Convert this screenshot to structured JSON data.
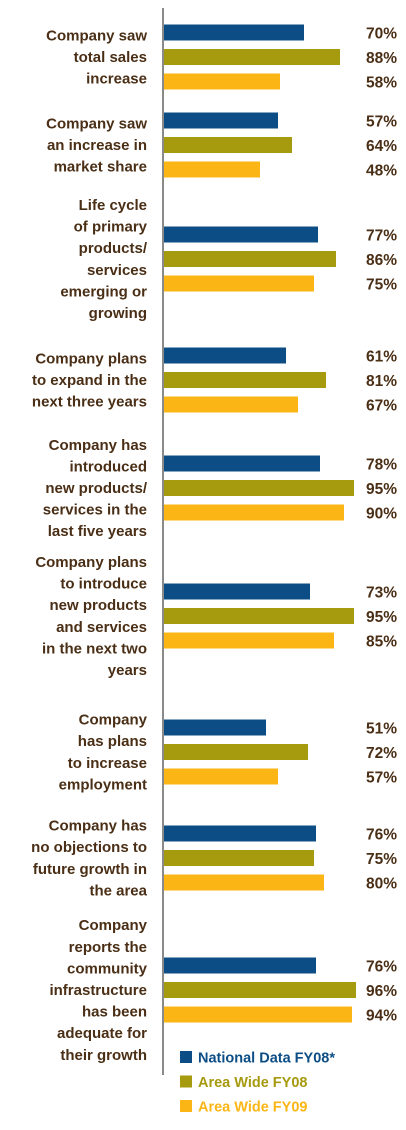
{
  "chart_data": {
    "type": "bar",
    "orientation": "horizontal",
    "xlim": [
      0,
      100
    ],
    "grid": false,
    "legend_position": "bottom-right",
    "categories": [
      [
        "Company saw",
        "total sales",
        "increase"
      ],
      [
        "Company saw",
        "an increase in",
        "market share"
      ],
      [
        "Life cycle",
        "of primary",
        "products/",
        "services",
        "emerging or",
        "growing"
      ],
      [
        "Company plans",
        "to expand in the",
        "next three years"
      ],
      [
        "Company has",
        "introduced",
        "new products/",
        "services in the",
        "last five years"
      ],
      [
        "Company plans",
        "to introduce",
        "new products",
        "and services",
        "in the next two",
        "years"
      ],
      [
        "Company",
        "has plans",
        "to increase",
        "employment"
      ],
      [
        "Company has",
        "no objections to",
        "future growth in",
        "the area"
      ],
      [
        "Company",
        "reports the",
        "community",
        "infrastructure",
        "has been",
        "adequate for",
        "their growth"
      ]
    ],
    "series": [
      {
        "name": "National Data FY08*",
        "color": "#0d4d85",
        "values": [
          70,
          57,
          77,
          61,
          78,
          73,
          51,
          76,
          76
        ],
        "labels": [
          "70%",
          "57%",
          "77%",
          "61%",
          "78%",
          "73%",
          "51%",
          "76%",
          "76%"
        ]
      },
      {
        "name": "Area Wide FY08",
        "color": "#a69a0e",
        "values": [
          88,
          64,
          86,
          81,
          95,
          95,
          72,
          75,
          96
        ],
        "labels": [
          "88%",
          "64%",
          "86%",
          "81%",
          "95%",
          "95%",
          "72%",
          "75%",
          "96%"
        ]
      },
      {
        "name": "Area Wide FY09",
        "color": "#fbb616",
        "values": [
          58,
          48,
          75,
          67,
          90,
          85,
          57,
          80,
          94
        ],
        "labels": [
          "58%",
          "48%",
          "75%",
          "67%",
          "90%",
          "85%",
          "57%",
          "80%",
          "94%"
        ]
      }
    ],
    "axis_color": "#3c3c3c",
    "label_color": "#4a2f16"
  }
}
